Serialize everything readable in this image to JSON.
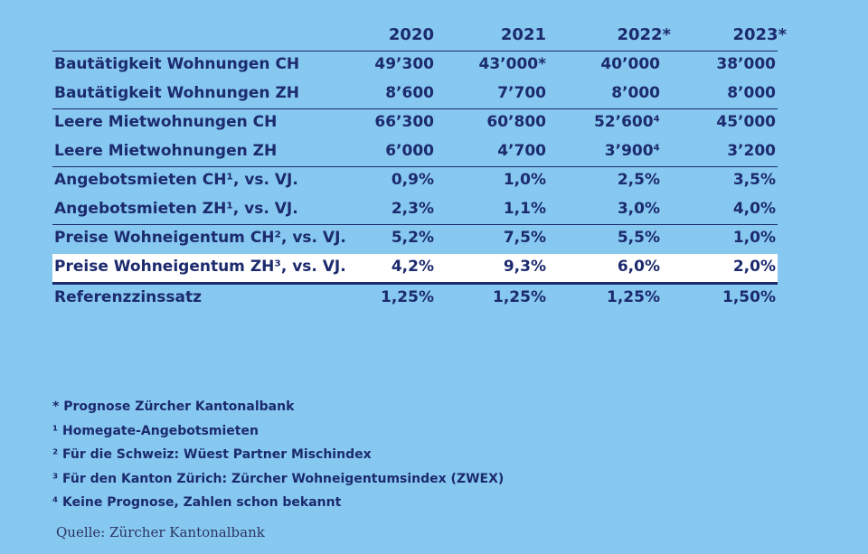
{
  "columns": [
    "2020",
    "2021",
    "2022*",
    "2023*"
  ],
  "rows": [
    {
      "label": "Bautätigkeit Wohnungen CH",
      "values": [
        "49’300",
        "43’000*",
        "40’000",
        "38’000"
      ]
    },
    {
      "label": "Bautätigkeit Wohnungen ZH",
      "values": [
        "8’600",
        "7’700",
        "8’000",
        "8’000"
      ]
    },
    {
      "label": "Leere Mietwohnungen CH",
      "values": [
        "66’300",
        "60’800",
        "52’600⁴",
        "45’000"
      ]
    },
    {
      "label": "Leere Mietwohnungen ZH",
      "values": [
        "6’000",
        "4’700",
        "3’900⁴",
        "3’200"
      ]
    },
    {
      "label": "Angebotsmieten CH¹, vs. VJ.",
      "values": [
        "0,9%",
        "1,0%",
        "2,5%",
        "3,5%"
      ]
    },
    {
      "label": "Angebotsmieten ZH¹, vs. VJ.",
      "values": [
        "2,3%",
        "1,1%",
        "3,0%",
        "4,0%"
      ]
    },
    {
      "label": "Preise Wohneigentum CH², vs. VJ.",
      "values": [
        "5,2%",
        "7,5%",
        "5,5%",
        "1,0%"
      ]
    },
    {
      "label": "Preise Wohneigentum ZH³, vs. VJ.",
      "values": [
        "4,2%",
        "9,3%",
        "6,0%",
        "2,0%"
      ]
    },
    {
      "label": "Referenzzinssatz",
      "values": [
        "1,25%",
        "1,25%",
        "1,25%",
        "1,50%"
      ]
    }
  ],
  "footnotes": [
    "* Prognose Zürcher Kantonalbank",
    "¹ Homegate-Angebotsmieten",
    "² Für die Schweiz: Wüest Partner Mischindex",
    "³ Für den Kanton Zürich: Zürcher Wohneigentumsindex (ZWEX)",
    "⁴ Keine Prognose, Zahlen schon bekannt"
  ],
  "source": "Quelle: Zürcher Kantonalbank",
  "colors": {
    "background": "#86c8f0",
    "text": "#1c2a6e",
    "highlight_row": "#ffffff"
  }
}
